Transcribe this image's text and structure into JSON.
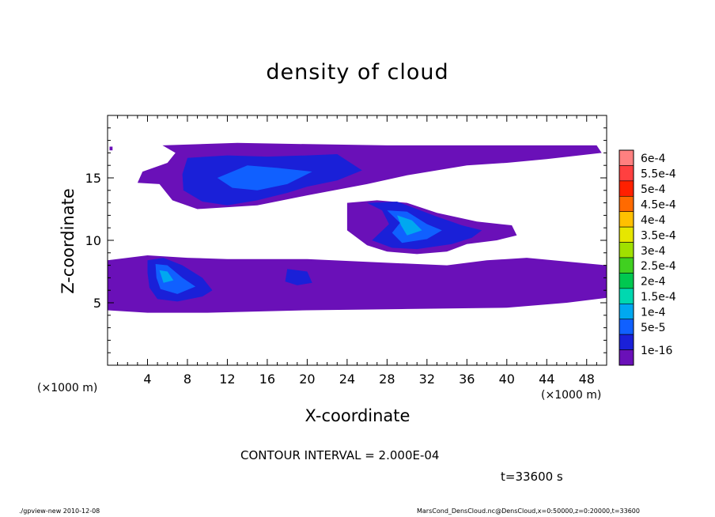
{
  "chart_data": {
    "type": "heatmap",
    "title": "density of cloud",
    "xlabel": "X-coordinate",
    "ylabel": "Z-coordinate",
    "x_unit_left": "(×1000 m)",
    "x_unit_right": "(×1000 m)",
    "xlim": [
      0,
      50
    ],
    "ylim": [
      0,
      20
    ],
    "x_ticks": [
      4,
      8,
      12,
      16,
      20,
      24,
      28,
      32,
      36,
      40,
      44,
      48
    ],
    "x_tick_labels": [
      "4",
      "8",
      "12",
      "16",
      "20",
      "24",
      "28",
      "32",
      "36",
      "40",
      "44",
      "48"
    ],
    "y_ticks": [
      5,
      10,
      15
    ],
    "y_tick_labels": [
      "5",
      "10",
      "15"
    ],
    "colorbar": {
      "labels": [
        "6e-4",
        "5.5e-4",
        "5e-4",
        "4.5e-4",
        "4e-4",
        "3.5e-4",
        "3e-4",
        "2.5e-4",
        "2e-4",
        "1.5e-4",
        "1e-4",
        "5e-5",
        "1e-16"
      ],
      "colors": [
        "#ff8080",
        "#ff4040",
        "#ff2000",
        "#ff6a00",
        "#ffc000",
        "#e6e600",
        "#a0e000",
        "#40d020",
        "#00c850",
        "#00d8b0",
        "#00a8f0",
        "#1060ff",
        "#1a20d8",
        "#6a10b8"
      ]
    },
    "regions": [
      {
        "level": 1,
        "polygon": [
          [
            5.5,
            17.6
          ],
          [
            13,
            17.8
          ],
          [
            20,
            17.7
          ],
          [
            28,
            17.6
          ],
          [
            37,
            17.6
          ],
          [
            49,
            17.6
          ],
          [
            49.5,
            17.0
          ],
          [
            44,
            16.5
          ],
          [
            40,
            16.2
          ],
          [
            36,
            16.0
          ],
          [
            30,
            15.2
          ],
          [
            26,
            14.5
          ],
          [
            20,
            13.6
          ],
          [
            15,
            12.8
          ],
          [
            9,
            12.5
          ],
          [
            6.5,
            13.2
          ],
          [
            5.2,
            14.5
          ],
          [
            3,
            14.6
          ],
          [
            3.5,
            15.5
          ],
          [
            6,
            16.2
          ],
          [
            6.8,
            17.0
          ]
        ]
      },
      {
        "level": 1,
        "polygon": [
          [
            24,
            13.0
          ],
          [
            27,
            13.2
          ],
          [
            30,
            13.0
          ],
          [
            33,
            12.2
          ],
          [
            37,
            11.5
          ],
          [
            40.5,
            11.2
          ],
          [
            41,
            10.4
          ],
          [
            39,
            10.0
          ],
          [
            36,
            9.7
          ],
          [
            34,
            9.1
          ],
          [
            31,
            8.9
          ],
          [
            28,
            9.1
          ],
          [
            26,
            9.6
          ],
          [
            24,
            10.8
          ]
        ]
      },
      {
        "level": 1,
        "polygon": [
          [
            0,
            8.4
          ],
          [
            4,
            8.8
          ],
          [
            8,
            8.6
          ],
          [
            12,
            8.5
          ],
          [
            20,
            8.5
          ],
          [
            28,
            8.2
          ],
          [
            34,
            8.0
          ],
          [
            38,
            8.4
          ],
          [
            42,
            8.6
          ],
          [
            46,
            8.3
          ],
          [
            50,
            8.0
          ],
          [
            50,
            5.4
          ],
          [
            46,
            5.0
          ],
          [
            40,
            4.6
          ],
          [
            30,
            4.5
          ],
          [
            20,
            4.4
          ],
          [
            10,
            4.2
          ],
          [
            4,
            4.2
          ],
          [
            0,
            4.4
          ]
        ]
      },
      {
        "level": 1,
        "polygon": [
          [
            0.2,
            17.5
          ],
          [
            0.5,
            17.5
          ],
          [
            0.5,
            17.2
          ],
          [
            0.2,
            17.2
          ]
        ]
      },
      {
        "level": 2,
        "polygon": [
          [
            8,
            16.6
          ],
          [
            12,
            16.8
          ],
          [
            16,
            16.7
          ],
          [
            20,
            16.8
          ],
          [
            23,
            16.9
          ],
          [
            25.5,
            15.6
          ],
          [
            23,
            14.8
          ],
          [
            20,
            14.3
          ],
          [
            18,
            13.8
          ],
          [
            15,
            13.2
          ],
          [
            12,
            12.8
          ],
          [
            9.5,
            13.1
          ],
          [
            7.6,
            14.0
          ],
          [
            7.5,
            15.3
          ]
        ]
      },
      {
        "level": 2,
        "polygon": [
          [
            26,
            13.0
          ],
          [
            29,
            13.1
          ],
          [
            31,
            12.5
          ],
          [
            33,
            11.9
          ],
          [
            35.5,
            11.2
          ],
          [
            37.5,
            10.8
          ],
          [
            36.5,
            10.2
          ],
          [
            34.5,
            9.7
          ],
          [
            31,
            9.3
          ],
          [
            28.5,
            9.4
          ],
          [
            26.5,
            10.0
          ],
          [
            28.2,
            11.3
          ],
          [
            27.5,
            12.4
          ]
        ]
      },
      {
        "level": 2,
        "polygon": [
          [
            4,
            8.4
          ],
          [
            5.6,
            8.6
          ],
          [
            7.5,
            8.0
          ],
          [
            9.5,
            7.0
          ],
          [
            10.5,
            6.0
          ],
          [
            9.5,
            5.5
          ],
          [
            7,
            5.1
          ],
          [
            5,
            5.3
          ],
          [
            4.2,
            6.2
          ],
          [
            4.0,
            7.4
          ]
        ]
      },
      {
        "level": 2,
        "polygon": [
          [
            18,
            7.7
          ],
          [
            20,
            7.5
          ],
          [
            20.5,
            6.6
          ],
          [
            19,
            6.4
          ],
          [
            17.8,
            6.7
          ]
        ]
      },
      {
        "level": 3,
        "polygon": [
          [
            14,
            16.0
          ],
          [
            17,
            15.8
          ],
          [
            20.5,
            15.5
          ],
          [
            18,
            14.5
          ],
          [
            15,
            14.0
          ],
          [
            12.5,
            14.2
          ],
          [
            11,
            15.0
          ]
        ]
      },
      {
        "level": 3,
        "polygon": [
          [
            28,
            12.4
          ],
          [
            30,
            12.3
          ],
          [
            32,
            11.3
          ],
          [
            33.5,
            10.8
          ],
          [
            32,
            10.1
          ],
          [
            29.5,
            9.8
          ],
          [
            28.5,
            10.6
          ],
          [
            29.3,
            11.4
          ]
        ]
      },
      {
        "level": 3,
        "polygon": [
          [
            4.8,
            8.1
          ],
          [
            6,
            8.0
          ],
          [
            7.5,
            7.0
          ],
          [
            8.8,
            6.3
          ],
          [
            7,
            5.7
          ],
          [
            5.3,
            6.1
          ],
          [
            4.9,
            7.0
          ]
        ]
      },
      {
        "level": 4,
        "polygon": [
          [
            29,
            12.0
          ],
          [
            30.5,
            11.6
          ],
          [
            31.5,
            10.8
          ],
          [
            30,
            10.4
          ],
          [
            29.4,
            11.2
          ]
        ]
      },
      {
        "level": 4,
        "polygon": [
          [
            5.2,
            7.6
          ],
          [
            6,
            7.5
          ],
          [
            6.6,
            6.8
          ],
          [
            5.6,
            6.6
          ]
        ]
      }
    ],
    "contour_interval": "CONTOUR INTERVAL = 2.000E-04",
    "time": "t=33600 s"
  },
  "footer": {
    "left": "./gpview-new  2010-12-08",
    "right": "MarsCond_DensCloud.nc@DensCloud,x=0:50000,z=0:20000,t=33600"
  }
}
